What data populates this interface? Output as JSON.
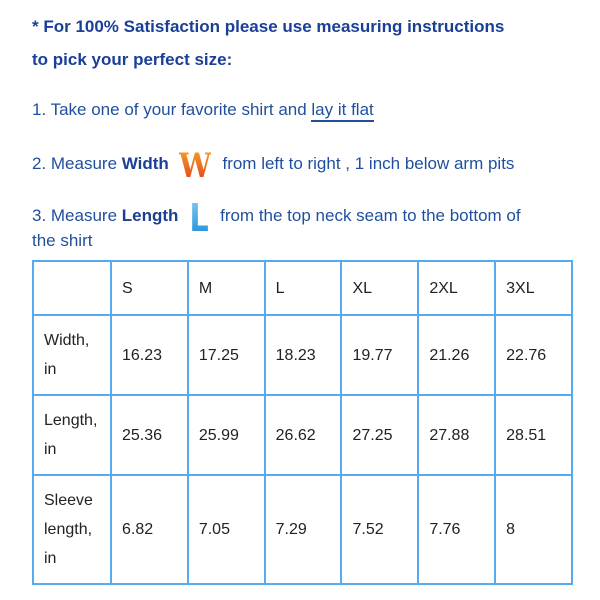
{
  "intro": {
    "line1": "* For 100% Satisfaction please use measuring instructions",
    "line2": "to pick your perfect size:"
  },
  "steps": {
    "s1_prefix": "1. Take one of your favorite shirt and ",
    "s1_link": "lay it flat",
    "s2_prefix": "2. Measure ",
    "s2_bold": "Width",
    "s2_icon": "W",
    "s2_suffix": " from left to right , 1 inch below arm pits",
    "s3_prefix": "3. Measure ",
    "s3_bold": "Length",
    "s3_icon": "L",
    "s3_suffix": " from the top neck seam to the bottom of",
    "s3_cont": "the shirt"
  },
  "colors": {
    "text": "#1f4f9e",
    "table_border": "#55aaf0",
    "width_icon": "#e2401a",
    "length_icon": "#1f8fd8"
  },
  "table": {
    "headers": [
      "",
      "S",
      "M",
      "L",
      "XL",
      "2XL",
      "3XL"
    ],
    "rows": [
      {
        "label1": "Width,",
        "label2": "in",
        "values": [
          "16.23",
          "17.25",
          "18.23",
          "19.77",
          "21.26",
          "22.76"
        ]
      },
      {
        "label1": "Length,",
        "label2": "in",
        "values": [
          "25.36",
          "25.99",
          "26.62",
          "27.25",
          "27.88",
          "28.51"
        ]
      },
      {
        "label1": "Sleeve",
        "label2": "length,",
        "label3": "in",
        "values": [
          "6.82",
          "7.05",
          "7.29",
          "7.52",
          "7.76",
          "8"
        ]
      }
    ]
  }
}
